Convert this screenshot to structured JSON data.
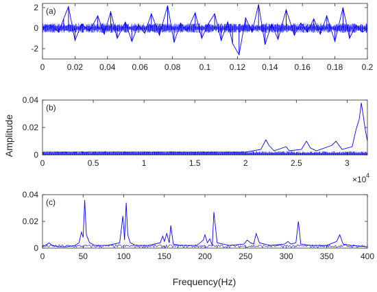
{
  "figure": {
    "ylabel": "Amplitude",
    "xlabel": "Frequency(Hz)"
  },
  "chart_data": [
    {
      "type": "line",
      "panel_label": "(a)",
      "xlim": [
        0,
        0.2
      ],
      "ylim": [
        -3,
        2.4
      ],
      "xticks": [
        0,
        0.02,
        0.04,
        0.06,
        0.08,
        0.1,
        0.12,
        0.14,
        0.16,
        0.18,
        0.2
      ],
      "xtick_labels": [
        "0",
        "0.02",
        "0.04",
        "0.06",
        "0.08",
        "0.1",
        "0.12",
        "0.14",
        "0.16",
        "0.18",
        "0.2"
      ],
      "yticks": [
        -2,
        0,
        2
      ],
      "ytick_labels": [
        "-2",
        "0",
        "2"
      ],
      "line_color": "#0000ff",
      "series": [
        {
          "x": [
            0,
            0.005,
            0.01,
            0.013,
            0.016,
            0.02,
            0.024,
            0.029,
            0.034,
            0.038,
            0.042,
            0.046,
            0.051,
            0.055,
            0.059,
            0.063,
            0.067,
            0.072,
            0.077,
            0.081,
            0.085,
            0.089,
            0.094,
            0.098,
            0.102,
            0.106,
            0.11,
            0.114,
            0.117,
            0.121,
            0.125,
            0.129,
            0.133,
            0.137,
            0.141,
            0.145,
            0.15,
            0.155,
            0.159,
            0.163,
            0.167,
            0.171,
            0.175,
            0.18,
            0.185,
            0.189,
            0.193,
            0.197,
            0.2
          ],
          "y": [
            0,
            0.3,
            -0.4,
            0.9,
            2.1,
            -1.2,
            0.4,
            -0.3,
            1.2,
            -0.6,
            1.6,
            -1.0,
            0.6,
            -1.3,
            0.3,
            -0.5,
            1.4,
            -0.7,
            2.2,
            -1.4,
            0.5,
            -0.3,
            1.5,
            -1.0,
            0.4,
            1.4,
            -1.2,
            0.6,
            -1.5,
            -2.6,
            1.0,
            -0.4,
            2.3,
            -1.6,
            0.4,
            -1.1,
            1.8,
            -0.7,
            0.5,
            -0.4,
            0.9,
            -0.6,
            1.2,
            -1.3,
            2.0,
            -1.0,
            0.3,
            -0.4,
            0
          ]
        }
      ]
    },
    {
      "type": "line",
      "panel_label": "(b)",
      "xlim": [
        0,
        32000
      ],
      "ylim": [
        0,
        0.04
      ],
      "xticks": [
        0,
        5000,
        10000,
        15000,
        20000,
        25000,
        30000
      ],
      "xtick_labels": [
        "0",
        "0.5",
        "1",
        "1.5",
        "2",
        "2.5",
        "3"
      ],
      "yticks": [
        0,
        0.02,
        0.04
      ],
      "ytick_labels": [
        "0",
        "0.02",
        "0.04"
      ],
      "x_multiplier": "×10",
      "x_multiplier_exponent": "4",
      "line_color": "#0000ff",
      "series": [
        {
          "x": [
            0,
            4000,
            8000,
            12000,
            16000,
            20000,
            21500,
            22000,
            22300,
            22800,
            24000,
            24300,
            25500,
            26000,
            26400,
            27000,
            28500,
            28900,
            29500,
            30500,
            30900,
            31200,
            31400,
            31600,
            31800,
            32000
          ],
          "y": [
            0.002,
            0.002,
            0.002,
            0.002,
            0.002,
            0.002,
            0.004,
            0.011,
            0.007,
            0.003,
            0.006,
            0.003,
            0.004,
            0.01,
            0.005,
            0.003,
            0.007,
            0.01,
            0.004,
            0.006,
            0.019,
            0.026,
            0.038,
            0.028,
            0.018,
            0.01
          ]
        }
      ]
    },
    {
      "type": "line",
      "panel_label": "(c)",
      "xlim": [
        0,
        400
      ],
      "ylim": [
        0,
        0.04
      ],
      "xticks": [
        0,
        50,
        100,
        150,
        200,
        250,
        300,
        350,
        400
      ],
      "xtick_labels": [
        "0",
        "50",
        "100",
        "150",
        "200",
        "250",
        "300",
        "350",
        "400"
      ],
      "yticks": [
        0,
        0.02,
        0.04
      ],
      "ytick_labels": [
        "0",
        "0.02",
        "0.04"
      ],
      "line_color": "#0000ff",
      "series": [
        {
          "x": [
            0,
            6,
            8,
            12,
            20,
            30,
            40,
            45,
            48,
            50,
            52,
            54,
            58,
            65,
            80,
            95,
            99,
            101,
            103,
            105,
            108,
            115,
            130,
            145,
            148,
            150,
            153,
            156,
            158,
            161,
            170,
            190,
            198,
            200,
            203,
            206,
            209,
            211,
            215,
            230,
            248,
            252,
            256,
            260,
            263,
            267,
            280,
            298,
            302,
            306,
            312,
            315,
            318,
            330,
            350,
            362,
            366,
            370,
            380,
            400
          ],
          "y": [
            0.001,
            0.003,
            0.004,
            0.002,
            0.001,
            0.001,
            0.002,
            0.004,
            0.012,
            0.008,
            0.036,
            0.01,
            0.004,
            0.002,
            0.002,
            0.004,
            0.024,
            0.006,
            0.034,
            0.01,
            0.004,
            0.002,
            0.002,
            0.004,
            0.009,
            0.005,
            0.011,
            0.004,
            0.017,
            0.003,
            0.002,
            0.002,
            0.006,
            0.01,
            0.004,
            0.007,
            0.002,
            0.027,
            0.004,
            0.002,
            0.003,
            0.006,
            0.004,
            0.003,
            0.011,
            0.004,
            0.002,
            0.003,
            0.005,
            0.003,
            0.004,
            0.02,
            0.003,
            0.002,
            0.002,
            0.005,
            0.01,
            0.003,
            0.002,
            0.001
          ]
        }
      ]
    }
  ]
}
